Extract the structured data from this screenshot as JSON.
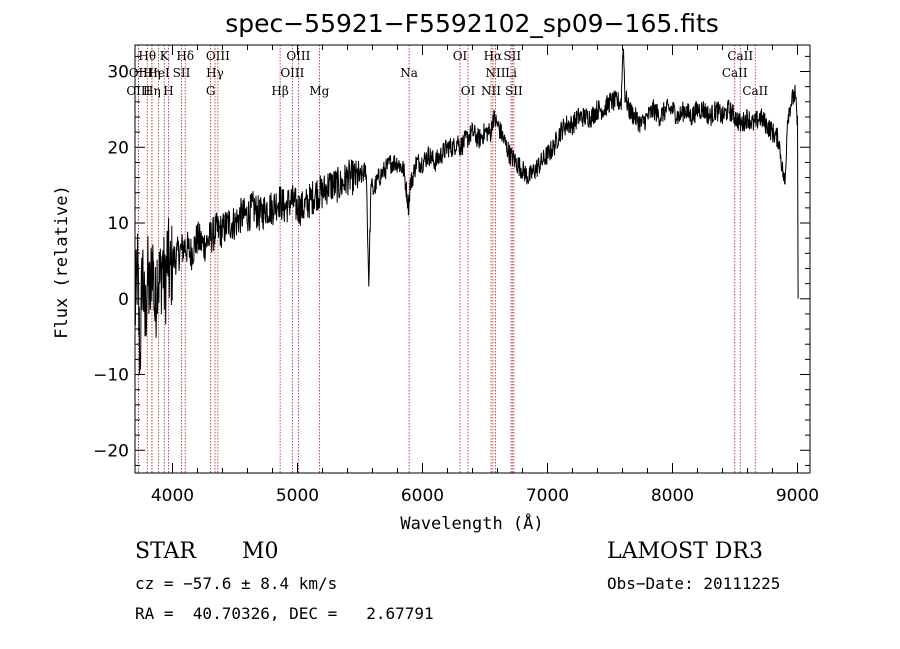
{
  "chart_data": {
    "type": "line",
    "title": "spec−55921−F5592102_sp09−165.fits",
    "xlabel": "Wavelength (Å)",
    "ylabel": "Flux (relative)",
    "xlim": [
      3700,
      9100
    ],
    "ylim": [
      -23,
      33.5
    ],
    "xticks": [
      4000,
      5000,
      6000,
      7000,
      8000,
      9000
    ],
    "yticks": [
      -20,
      -10,
      0,
      10,
      20,
      30
    ],
    "ytick_labels": [
      "−20",
      "−10",
      "0",
      "10",
      "20",
      "30"
    ],
    "colors": {
      "spectrum": "#000000",
      "lines": "#b22222"
    },
    "series": [
      {
        "name": "flux",
        "x": [
          3700,
          3720,
          3740,
          3760,
          3780,
          3800,
          3820,
          3840,
          3860,
          3880,
          3900,
          3920,
          3940,
          3960,
          3980,
          4000,
          4050,
          4100,
          4150,
          4200,
          4250,
          4300,
          4350,
          4400,
          4450,
          4500,
          4550,
          4600,
          4650,
          4700,
          4750,
          4800,
          4850,
          4900,
          4950,
          5000,
          5050,
          5100,
          5150,
          5200,
          5250,
          5300,
          5350,
          5400,
          5450,
          5500,
          5550,
          5570,
          5590,
          5600,
          5650,
          5700,
          5750,
          5800,
          5850,
          5890,
          5900,
          5920,
          5950,
          6000,
          6050,
          6100,
          6150,
          6200,
          6250,
          6280,
          6300,
          6350,
          6400,
          6450,
          6500,
          6550,
          6563,
          6600,
          6650,
          6700,
          6750,
          6800,
          6850,
          6900,
          6950,
          7000,
          7050,
          7100,
          7150,
          7200,
          7250,
          7300,
          7350,
          7400,
          7450,
          7500,
          7550,
          7590,
          7605,
          7620,
          7650,
          7700,
          7750,
          7800,
          7850,
          7900,
          7950,
          8000,
          8050,
          8100,
          8150,
          8200,
          8250,
          8300,
          8350,
          8400,
          8450,
          8500,
          8550,
          8600,
          8650,
          8700,
          8750,
          8800,
          8850,
          8880,
          8900,
          8920,
          8950,
          8980,
          9000,
          9005
        ],
        "y": [
          -2,
          4,
          -8,
          5,
          -4,
          3,
          0,
          6,
          -2,
          4,
          2,
          5,
          1,
          6,
          3,
          5,
          6,
          7,
          6,
          8,
          7,
          8,
          9,
          9,
          10,
          10,
          11,
          11,
          12,
          11,
          12,
          12,
          13,
          12,
          13,
          12,
          12,
          13,
          14,
          14,
          15,
          15,
          15,
          16,
          16,
          16,
          17,
          2,
          16,
          14,
          16,
          17,
          18,
          18,
          17,
          12,
          15,
          16,
          18,
          18,
          19,
          18,
          19,
          20,
          20,
          21,
          20,
          21,
          22,
          21,
          22,
          22,
          24,
          23,
          21,
          19,
          18,
          17,
          16,
          17,
          18,
          19,
          20,
          22,
          23,
          23,
          24,
          24,
          24,
          25,
          25,
          26,
          26,
          26,
          34,
          27,
          25,
          24,
          23,
          24,
          25,
          24,
          25,
          25,
          24,
          25,
          24,
          25,
          25,
          24,
          25,
          24,
          25,
          24,
          23,
          24,
          23,
          24,
          23,
          22,
          21,
          17,
          15,
          24,
          26,
          27,
          23,
          0
        ]
      }
    ],
    "spectral_lines": [
      {
        "name": "Hθ",
        "x": 3798,
        "row": 0
      },
      {
        "name": "K",
        "x": 3934,
        "row": 0
      },
      {
        "name": "Hδ",
        "x": 4102,
        "row": 0
      },
      {
        "name": "OIII",
        "x": 4363,
        "row": 0
      },
      {
        "name": "OIII",
        "x": 5007,
        "row": 0
      },
      {
        "name": "OI",
        "x": 6300,
        "row": 0
      },
      {
        "name": "Hα",
        "x": 6563,
        "row": 0
      },
      {
        "name": "SII",
        "x": 6718,
        "row": 0
      },
      {
        "name": "CaII",
        "x": 8542,
        "row": 0
      },
      {
        "name": "OII",
        "x": 3727,
        "row": 1
      },
      {
        "name": "Hη",
        "x": 3835,
        "row": 1
      },
      {
        "name": "HeI",
        "x": 3889,
        "row": 1
      },
      {
        "name": "SII",
        "x": 4072,
        "row": 1
      },
      {
        "name": "Hγ",
        "x": 4340,
        "row": 1
      },
      {
        "name": "OIII",
        "x": 4959,
        "row": 1
      },
      {
        "name": "Na",
        "x": 5893,
        "row": 1
      },
      {
        "name": "NII",
        "x": 6584,
        "row": 1
      },
      {
        "name": "Li",
        "x": 6708,
        "row": 1
      },
      {
        "name": "CaII",
        "x": 8498,
        "row": 1
      },
      {
        "name": "OIII",
        "x": 3727,
        "row": 2
      },
      {
        "name": "Hη",
        "x": 3835,
        "row": 2
      },
      {
        "name": "H",
        "x": 3968,
        "row": 2
      },
      {
        "name": "G",
        "x": 4305,
        "row": 2
      },
      {
        "name": "Hβ",
        "x": 4861,
        "row": 2
      },
      {
        "name": "Mg",
        "x": 5175,
        "row": 2
      },
      {
        "name": "OI",
        "x": 6364,
        "row": 2
      },
      {
        "name": "NII",
        "x": 6548,
        "row": 2
      },
      {
        "name": "SII",
        "x": 6731,
        "row": 2
      },
      {
        "name": "CaII",
        "x": 8662,
        "row": 2
      }
    ]
  },
  "info": {
    "object_class": "STAR",
    "subclass": "M0",
    "survey": "LAMOST DR3",
    "redshift": "cz = −57.6 ± 8.4 km/s",
    "obs_date": "Obs−Date: 20111225",
    "coords": "RA =  40.70326, DEC =   2.67791"
  }
}
